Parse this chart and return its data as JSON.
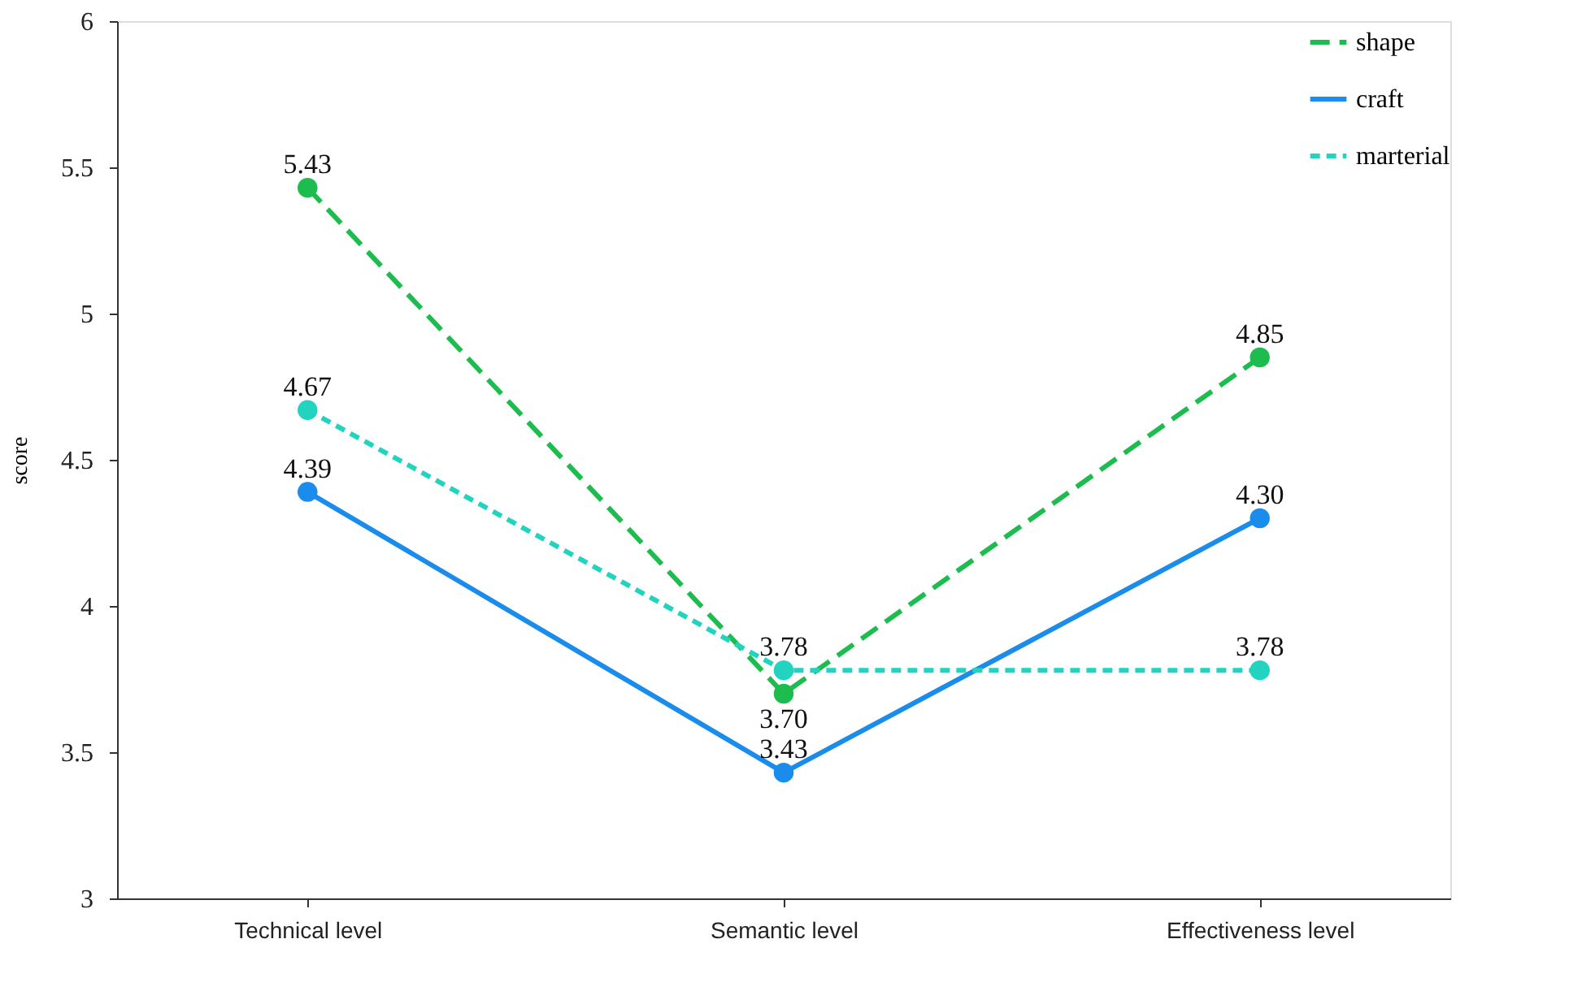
{
  "chart_data": {
    "type": "line",
    "ylabel": "score",
    "categories": [
      "Technical level",
      "Semantic level",
      "Effectiveness level"
    ],
    "series": [
      {
        "name": "shape",
        "color": "#1cbc4e",
        "values": [
          5.43,
          3.7,
          4.85
        ],
        "line_style": "dashed",
        "value_labels": [
          "5.43",
          "3.70",
          "4.85"
        ]
      },
      {
        "name": "craft",
        "color": "#1a8ceb",
        "values": [
          4.39,
          3.43,
          4.3
        ],
        "line_style": "solid",
        "value_labels": [
          "4.39",
          "3.43",
          "4.30"
        ]
      },
      {
        "name": "marterial",
        "color": "#22d3c0",
        "values": [
          4.67,
          3.78,
          3.78
        ],
        "line_style": "dashed",
        "value_labels": [
          "4.67",
          "3.78",
          "3.78"
        ]
      }
    ],
    "ylim": [
      3,
      6
    ],
    "yticks": [
      3,
      3.5,
      4,
      4.5,
      5,
      5.5,
      6
    ],
    "marker": "circle",
    "grid": false,
    "legend": "top right"
  }
}
